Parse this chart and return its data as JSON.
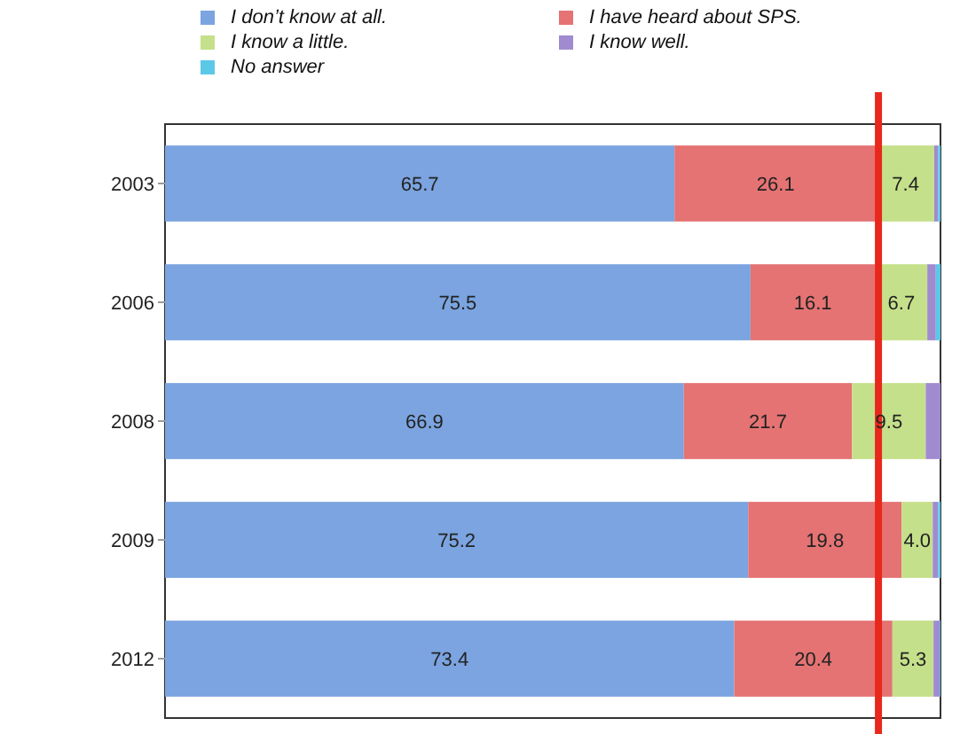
{
  "chart_data": {
    "type": "bar",
    "orientation": "horizontal",
    "stacked": true,
    "categories": [
      "2003",
      "2006",
      "2008",
      "2009",
      "2012"
    ],
    "xlim": [
      0,
      100
    ],
    "tick_labels": "y",
    "legend": "top",
    "series": [
      {
        "name": "I don’t know at all.",
        "color": "#7ba4e0",
        "values": [
          65.7,
          75.5,
          66.9,
          75.2,
          73.4
        ],
        "value_labels": [
          "65.7",
          "75.5",
          "66.9",
          "75.2",
          "73.4"
        ]
      },
      {
        "name": "I have heard about SPS.",
        "color": "#e57373",
        "values": [
          26.1,
          16.1,
          21.7,
          19.8,
          20.4
        ],
        "value_labels": [
          "26.1",
          "16.1",
          "21.7",
          "19.8",
          "20.4"
        ]
      },
      {
        "name": "I know a little.",
        "color": "#c5e08a",
        "values": [
          7.4,
          6.7,
          9.5,
          4.0,
          5.3
        ],
        "value_labels": [
          "7.4",
          "6.7",
          "9.5",
          "4.0",
          "5.3"
        ]
      },
      {
        "name": "I know well.",
        "color": "#a08bd0",
        "values": [
          0.5,
          1.1,
          1.9,
          0.7,
          0.8
        ],
        "value_labels": [
          null,
          null,
          null,
          null,
          null
        ]
      },
      {
        "name": "No answer",
        "color": "#5bc8e8",
        "values": [
          0.3,
          0.6,
          0,
          0.3,
          0.1
        ],
        "value_labels": [
          null,
          null,
          null,
          null,
          null
        ]
      }
    ],
    "ref_lines": [
      {
        "axis": "x",
        "value": 92,
        "color": "#e8281c"
      }
    ]
  }
}
